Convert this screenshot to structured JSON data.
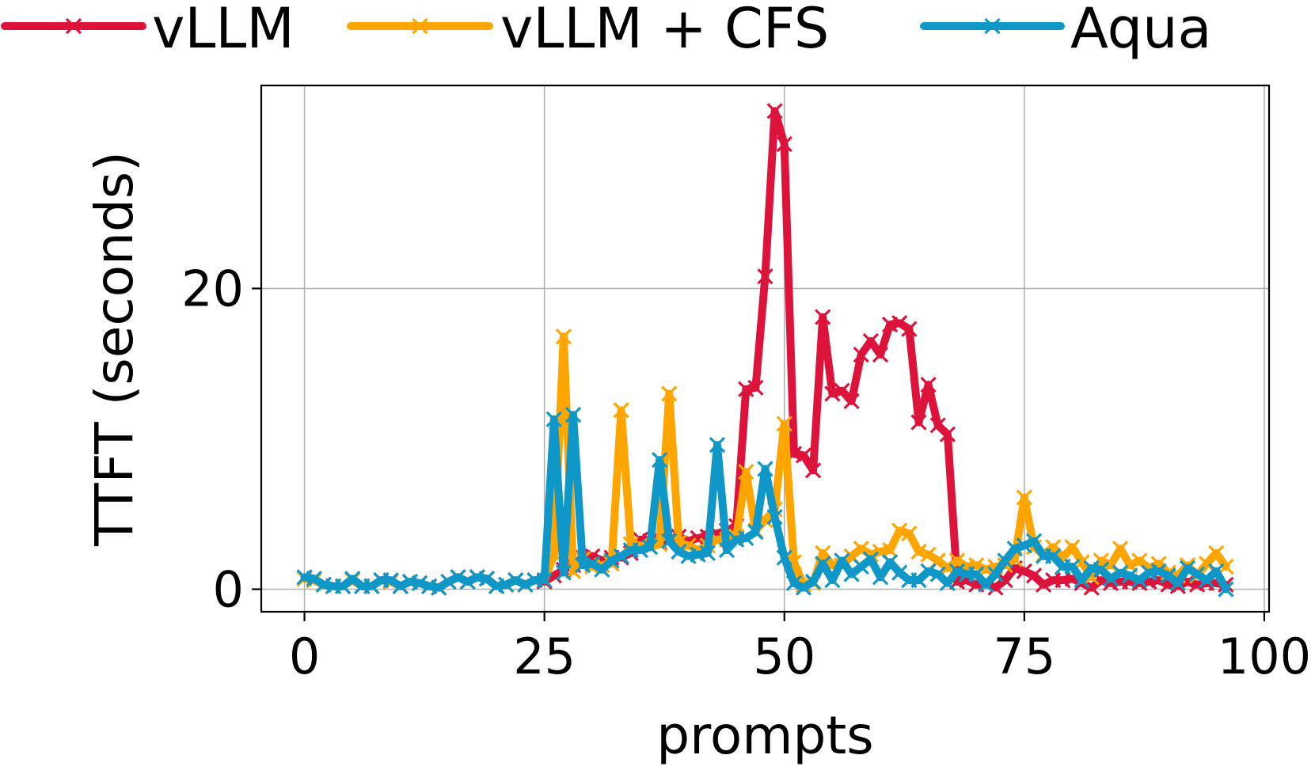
{
  "chart_data": {
    "type": "line",
    "title": "",
    "xlabel": "prompts",
    "ylabel": "TTFT (seconds)",
    "xlim": [
      -4.5,
      100.5
    ],
    "ylim": [
      -1.5,
      33.5
    ],
    "xticks": [
      0,
      25,
      50,
      75,
      100
    ],
    "yticks": [
      0,
      20
    ],
    "grid": true,
    "legend": "top, outside plot, 3 columns",
    "x": [
      0,
      1,
      2,
      3,
      4,
      5,
      6,
      7,
      8,
      9,
      10,
      11,
      12,
      13,
      14,
      15,
      16,
      17,
      18,
      19,
      20,
      21,
      22,
      23,
      24,
      25,
      26,
      27,
      28,
      29,
      30,
      31,
      32,
      33,
      34,
      35,
      36,
      37,
      38,
      39,
      40,
      41,
      42,
      43,
      44,
      45,
      46,
      47,
      48,
      49,
      50,
      51,
      52,
      53,
      54,
      55,
      56,
      57,
      58,
      59,
      60,
      61,
      62,
      63,
      64,
      65,
      66,
      67,
      68,
      69,
      70,
      71,
      72,
      73,
      74,
      75,
      76,
      77,
      78,
      79,
      80,
      81,
      82,
      83,
      84,
      85,
      86,
      87,
      88,
      89,
      90,
      91,
      92,
      93,
      94,
      95,
      96
    ],
    "series": [
      {
        "name": "vLLM",
        "color": "#dc143c",
        "values": [
          0.7,
          0.6,
          0.3,
          0.2,
          0.2,
          0.6,
          0.2,
          0.2,
          0.6,
          0.5,
          0.2,
          0.5,
          0.4,
          0.2,
          0.1,
          0.5,
          0.8,
          0.5,
          0.8,
          0.7,
          0.2,
          0.3,
          0.6,
          0.3,
          0.6,
          0.5,
          0.9,
          1.3,
          1.6,
          2.1,
          2.2,
          1.9,
          2.1,
          2.1,
          2.4,
          3.3,
          3.2,
          3.1,
          3.3,
          3.5,
          3.2,
          3.4,
          3.5,
          3.7,
          3.9,
          4.2,
          13.3,
          13.4,
          20.8,
          31.8,
          29.6,
          9.0,
          8.9,
          7.9,
          18.1,
          13.0,
          13.2,
          12.5,
          15.6,
          16.5,
          15.6,
          17.6,
          17.7,
          17.3,
          11.1,
          13.6,
          10.9,
          10.3,
          0.5,
          0.6,
          0.3,
          0.4,
          0.1,
          0.6,
          1.4,
          1.2,
          0.9,
          0.3,
          0.6,
          0.6,
          0.7,
          0.4,
          0.1,
          0.6,
          0.4,
          0.5,
          0.5,
          0.4,
          0.5,
          0.6,
          0.3,
          0.2,
          0.5,
          0.3,
          0.4,
          0.4,
          0.3
        ]
      },
      {
        "name": "vLLM + CFS",
        "color": "#ffa500",
        "values": [
          0.7,
          0.6,
          0.3,
          0.2,
          0.2,
          0.6,
          0.2,
          0.2,
          0.6,
          0.5,
          0.2,
          0.5,
          0.4,
          0.2,
          0.1,
          0.5,
          0.8,
          0.5,
          0.8,
          0.7,
          0.2,
          0.3,
          0.6,
          0.3,
          0.6,
          0.6,
          2.3,
          16.8,
          1.2,
          2.0,
          1.5,
          1.6,
          1.7,
          11.9,
          3.0,
          2.9,
          2.8,
          3.0,
          13.0,
          3.1,
          2.9,
          2.6,
          2.9,
          3.3,
          3.3,
          3.5,
          7.8,
          3.9,
          4.6,
          5.3,
          11.0,
          1.8,
          0.3,
          0.4,
          2.4,
          1.6,
          1.6,
          2.2,
          2.7,
          2.3,
          2.5,
          2.6,
          3.9,
          3.7,
          2.5,
          2.3,
          1.9,
          1.4,
          1.9,
          1.5,
          1.6,
          1.3,
          1.5,
          1.6,
          2.0,
          6.1,
          2.8,
          2.3,
          2.8,
          2.1,
          2.8,
          1.8,
          0.8,
          1.9,
          1.6,
          2.7,
          1.6,
          1.9,
          1.4,
          1.7,
          1.1,
          0.9,
          1.6,
          0.9,
          1.7,
          2.4,
          1.5
        ]
      },
      {
        "name": "Aqua",
        "color": "#0f97c7",
        "values": [
          0.8,
          0.7,
          0.3,
          0.2,
          0.2,
          0.7,
          0.2,
          0.2,
          0.6,
          0.6,
          0.2,
          0.5,
          0.4,
          0.2,
          0.1,
          0.5,
          0.8,
          0.5,
          0.8,
          0.7,
          0.2,
          0.3,
          0.6,
          0.3,
          0.6,
          0.6,
          11.3,
          1.1,
          11.6,
          1.6,
          1.7,
          1.3,
          1.9,
          2.2,
          2.6,
          2.6,
          2.8,
          8.6,
          3.2,
          2.5,
          2.2,
          2.3,
          2.4,
          9.6,
          2.6,
          3.3,
          3.4,
          3.8,
          8.0,
          4.8,
          2.1,
          0.4,
          0.1,
          0.5,
          1.7,
          0.6,
          1.9,
          1.0,
          1.5,
          2.0,
          0.8,
          1.8,
          1.1,
          0.6,
          0.6,
          1.2,
          1.0,
          0.4,
          1.2,
          1.0,
          1.0,
          0.3,
          1.0,
          1.9,
          2.7,
          2.9,
          3.2,
          2.2,
          2.2,
          1.5,
          1.5,
          0.6,
          1.4,
          1.3,
          0.7,
          1.1,
          0.9,
          0.6,
          1.1,
          1.2,
          0.9,
          0.4,
          1.4,
          1.0,
          0.6,
          1.2,
          0.0
        ]
      }
    ]
  }
}
